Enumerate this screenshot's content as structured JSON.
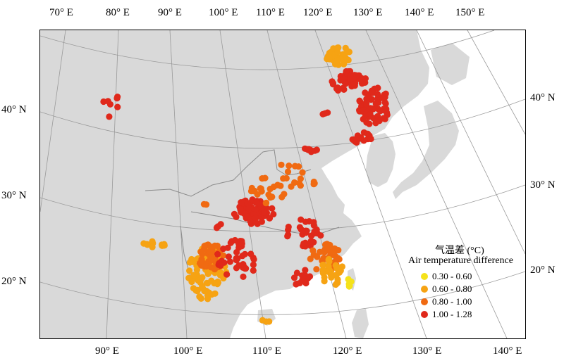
{
  "top_labels": [
    "70° E",
    "80° E",
    "90° E",
    "100° E",
    "110° E",
    "120° E",
    "130° E",
    "140° E",
    "150° E"
  ],
  "bottom_labels": [
    "90° E",
    "100° E",
    "110° E",
    "120° E",
    "130° E",
    "140° E"
  ],
  "left_labels": [
    "40° N",
    "30° N",
    "20° N"
  ],
  "right_labels": [
    "40° N",
    "30° N",
    "20° N"
  ],
  "legend": {
    "title_cn": "气温差 (°C)",
    "title_en": "Air temperature difference",
    "classes": [
      {
        "label": "0.30 - 0.60",
        "color": "#f5e21a"
      },
      {
        "label": "0.60 - 0.80",
        "color": "#f6a313"
      },
      {
        "label": "0.80 - 1.00",
        "color": "#f06a12"
      },
      {
        "label": "1.00 - 1.28",
        "color": "#e0291b"
      }
    ]
  },
  "colors": {
    "land": "#d9d9d9",
    "sea": "#ffffff",
    "graticule": "#9a9a9a",
    "border": "#8c8c8c"
  }
}
